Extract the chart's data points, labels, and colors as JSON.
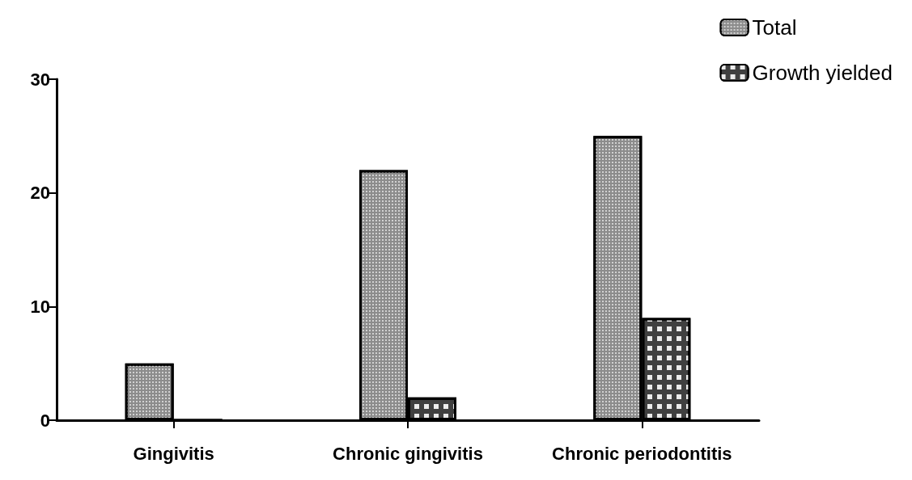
{
  "chart_data": {
    "type": "bar",
    "categories": [
      "Gingivitis",
      "Chronic gingivitis",
      "Chronic periodontitis"
    ],
    "series": [
      {
        "name": "Total",
        "color": "#8c8c8c",
        "values": [
          5,
          22,
          25
        ]
      },
      {
        "name": "Growth yielded",
        "color": "#404040",
        "values": [
          0,
          2,
          9
        ]
      }
    ],
    "ylim": [
      0,
      30
    ],
    "yticks": [
      0,
      10,
      20,
      30
    ],
    "grid": false,
    "legend": "top right"
  }
}
